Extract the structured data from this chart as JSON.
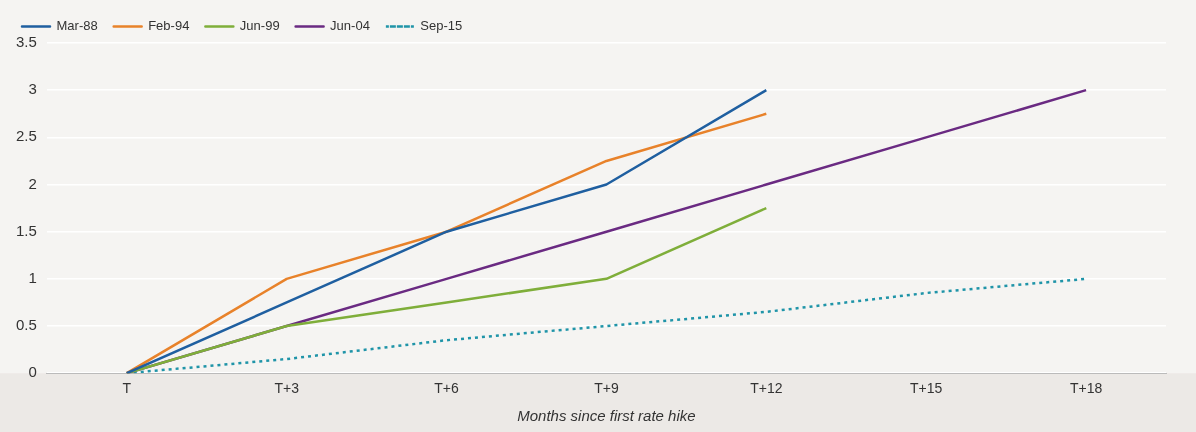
{
  "chart_data": {
    "type": "line",
    "xlabel": "Months since first rate hike",
    "categories": [
      "T",
      "T+3",
      "T+6",
      "T+9",
      "T+12",
      "T+15",
      "T+18"
    ],
    "series": [
      {
        "name": "Mar-88",
        "color": "#1f5fa0",
        "values": [
          0,
          0.75,
          1.5,
          2,
          3,
          null,
          null
        ]
      },
      {
        "name": "Feb-94",
        "color": "#e8822a",
        "values": [
          0,
          1,
          1.5,
          2.25,
          2.75,
          null,
          null
        ]
      },
      {
        "name": "Jun-99",
        "color": "#7fae3a",
        "values": [
          0,
          0.5,
          0.75,
          1,
          1.75,
          null,
          null
        ]
      },
      {
        "name": "Jun-04",
        "color": "#6a2a82",
        "values": [
          0,
          0.5,
          1,
          1.5,
          2,
          2.5,
          3
        ]
      },
      {
        "name": "Sep-15",
        "color": "#1f94a8",
        "line_style": "dotted",
        "values": [
          0,
          0.15,
          0.35,
          0.5,
          0.65,
          0.85,
          1
        ]
      }
    ],
    "ylim": [
      0,
      3.5
    ],
    "yticks": [
      0,
      0.5,
      1,
      1.5,
      2,
      2.5,
      3,
      3.5
    ],
    "grid": "y",
    "legend": "top left",
    "marker": "none"
  }
}
